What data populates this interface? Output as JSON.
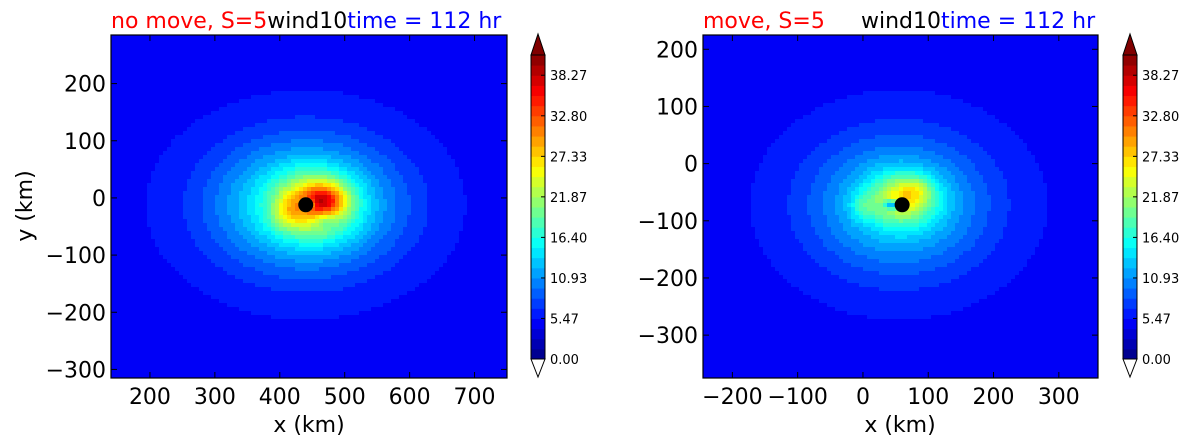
{
  "chart_data": [
    {
      "type": "heatmap",
      "title_left": "no move, S=5",
      "title_center": "wind10",
      "title_right": "time = 112 hr",
      "title_left_color": "#ff0000",
      "title_center_color": "#000000",
      "title_right_color": "#0000ff",
      "xlabel": "x (km)",
      "ylabel": "y (km)",
      "xlim": [
        140,
        750
      ],
      "ylim": [
        -315,
        285
      ],
      "xticks": [
        200,
        300,
        400,
        500,
        600,
        700
      ],
      "xtick_labels": [
        "200",
        "300",
        "400",
        "500",
        "600",
        "700"
      ],
      "yticks": [
        -300,
        -200,
        -100,
        0,
        100,
        200
      ],
      "ytick_labels": [
        "−300",
        "−200",
        "−100",
        "0",
        "100",
        "200"
      ],
      "center_marker": {
        "x": 440,
        "y": -12
      },
      "field": {
        "background": 5.0,
        "components": [
          {
            "x": 440,
            "y": -12,
            "amp": 13.0,
            "sx": 135,
            "sy": 110
          },
          {
            "x": 455,
            "y": -12,
            "amp": 13.0,
            "sx": 55,
            "sy": 50
          },
          {
            "x": 470,
            "y": -2,
            "amp": 9.0,
            "sx": 30,
            "sy": 25
          },
          {
            "x": 410,
            "y": -25,
            "amp": 4.0,
            "sx": 22,
            "sy": 30
          },
          {
            "x": 442,
            "y": -12,
            "amp": -20.0,
            "sx": 8,
            "sy": 8
          },
          {
            "x": 470,
            "y": -40,
            "amp": -5.0,
            "sx": 20,
            "sy": 14
          }
        ]
      }
    },
    {
      "type": "heatmap",
      "title_left": "move, S=5",
      "title_center": "wind10",
      "title_right": "time = 112 hr",
      "title_left_color": "#ff0000",
      "title_center_color": "#000000",
      "title_right_color": "#0000ff",
      "xlabel": "x (km)",
      "ylabel": "",
      "xlim": [
        -245,
        360
      ],
      "ylim": [
        -375,
        225
      ],
      "xticks": [
        -200,
        -100,
        0,
        100,
        200,
        300
      ],
      "xtick_labels": [
        "−200",
        "−100",
        "0",
        "100",
        "200",
        "300"
      ],
      "yticks": [
        -300,
        -200,
        -100,
        0,
        100,
        200
      ],
      "ytick_labels": [
        "−300",
        "−200",
        "−100",
        "0",
        "100",
        "200"
      ],
      "center_marker": {
        "x": 60,
        "y": -72
      },
      "field": {
        "background": 5.0,
        "components": [
          {
            "x": 55,
            "y": -72,
            "amp": 10.0,
            "sx": 130,
            "sy": 115
          },
          {
            "x": 60,
            "y": -62,
            "amp": 11.0,
            "sx": 50,
            "sy": 42
          },
          {
            "x": 80,
            "y": -45,
            "amp": 4.0,
            "sx": 25,
            "sy": 22
          },
          {
            "x": 0,
            "y": -75,
            "amp": 3.0,
            "sx": 20,
            "sy": 22
          },
          {
            "x": 45,
            "y": -72,
            "amp": -12.0,
            "sx": 14,
            "sy": 8
          }
        ]
      }
    }
  ],
  "colorbar": {
    "min": 0.0,
    "max": 41.0,
    "tick_values": [
      0.0,
      5.47,
      10.93,
      16.4,
      21.87,
      27.33,
      32.8,
      38.27
    ],
    "tick_labels": [
      "0.00",
      "5.47",
      "10.93",
      "16.40",
      "21.87",
      "27.33",
      "32.80",
      "38.27"
    ],
    "levels": 30,
    "extend_max_color": "#800000",
    "extend_min_color": "#ffffff"
  }
}
